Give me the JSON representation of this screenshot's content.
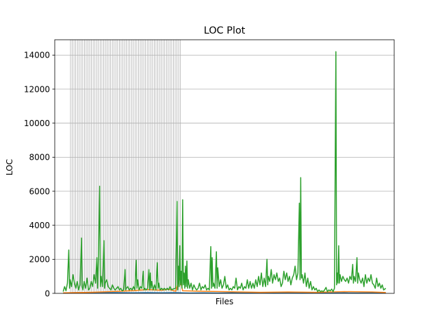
{
  "chart_data": {
    "type": "line",
    "title": "LOC Plot",
    "xlabel": "Files",
    "ylabel": "LOC",
    "ylim": [
      0,
      14900
    ],
    "y_ticks": [
      0,
      2000,
      4000,
      6000,
      8000,
      10000,
      12000,
      14000
    ],
    "y_tick_labels": [
      "0",
      "2000",
      "4000",
      "6000",
      "8000",
      "10000",
      "12000",
      "14000"
    ],
    "x_tick_labels": [],
    "grid": "horizontal lines at y ticks; vertical lines at each file index in the left part",
    "n_files": 460,
    "series": [
      {
        "color": "#1f77b4",
        "values": [
          [
            0,
            20
          ],
          [
            20,
            40
          ],
          [
            40,
            30
          ],
          [
            60,
            50
          ],
          [
            80,
            40
          ],
          [
            100,
            30
          ],
          [
            120,
            40
          ],
          [
            140,
            30
          ],
          [
            160,
            40
          ],
          [
            180,
            20
          ],
          [
            200,
            30
          ],
          [
            220,
            20
          ],
          [
            240,
            30
          ],
          [
            260,
            20
          ],
          [
            280,
            30
          ],
          [
            300,
            20
          ],
          [
            320,
            30
          ],
          [
            340,
            20
          ],
          [
            360,
            30
          ],
          [
            380,
            20
          ],
          [
            400,
            30
          ],
          [
            420,
            20
          ],
          [
            440,
            30
          ],
          [
            459,
            20
          ]
        ]
      },
      {
        "color": "#ff7f0e",
        "values": [
          [
            0,
            30
          ],
          [
            40,
            60
          ],
          [
            80,
            120
          ],
          [
            100,
            160
          ],
          [
            120,
            220
          ],
          [
            140,
            180
          ],
          [
            150,
            240
          ],
          [
            160,
            120
          ],
          [
            166,
            900
          ],
          [
            170,
            150
          ],
          [
            200,
            120
          ],
          [
            240,
            90
          ],
          [
            280,
            60
          ],
          [
            320,
            80
          ],
          [
            360,
            60
          ],
          [
            400,
            100
          ],
          [
            440,
            80
          ],
          [
            459,
            50
          ]
        ]
      },
      {
        "color": "#2ca02c",
        "values": [
          [
            0,
            100
          ],
          [
            2,
            400
          ],
          [
            4,
            150
          ],
          [
            6,
            600
          ],
          [
            8,
            2550
          ],
          [
            9,
            300
          ],
          [
            10,
            800
          ],
          [
            12,
            400
          ],
          [
            14,
            1100
          ],
          [
            16,
            600
          ],
          [
            18,
            300
          ],
          [
            20,
            700
          ],
          [
            22,
            200
          ],
          [
            24,
            500
          ],
          [
            26,
            3250
          ],
          [
            27,
            400
          ],
          [
            28,
            200
          ],
          [
            30,
            700
          ],
          [
            32,
            300
          ],
          [
            34,
            900
          ],
          [
            36,
            200
          ],
          [
            38,
            300
          ],
          [
            40,
            700
          ],
          [
            42,
            400
          ],
          [
            44,
            1100
          ],
          [
            46,
            600
          ],
          [
            48,
            2100
          ],
          [
            49,
            300
          ],
          [
            50,
            1800
          ],
          [
            52,
            6300
          ],
          [
            53,
            400
          ],
          [
            54,
            1000
          ],
          [
            56,
            400
          ],
          [
            58,
            3100
          ],
          [
            59,
            300
          ],
          [
            60,
            600
          ],
          [
            62,
            800
          ],
          [
            64,
            400
          ],
          [
            66,
            300
          ],
          [
            68,
            200
          ],
          [
            70,
            500
          ],
          [
            72,
            300
          ],
          [
            74,
            200
          ],
          [
            76,
            300
          ],
          [
            78,
            400
          ],
          [
            80,
            200
          ],
          [
            82,
            300
          ],
          [
            84,
            150
          ],
          [
            86,
            200
          ],
          [
            88,
            1400
          ],
          [
            89,
            200
          ],
          [
            90,
            300
          ],
          [
            92,
            400
          ],
          [
            94,
            200
          ],
          [
            96,
            300
          ],
          [
            98,
            200
          ],
          [
            100,
            400
          ],
          [
            102,
            200
          ],
          [
            104,
            1950
          ],
          [
            105,
            300
          ],
          [
            106,
            800
          ],
          [
            108,
            200
          ],
          [
            110,
            400
          ],
          [
            112,
            300
          ],
          [
            114,
            1300
          ],
          [
            115,
            200
          ],
          [
            116,
            300
          ],
          [
            118,
            200
          ],
          [
            120,
            300
          ],
          [
            122,
            1400
          ],
          [
            123,
            200
          ],
          [
            124,
            1200
          ],
          [
            125,
            300
          ],
          [
            126,
            700
          ],
          [
            128,
            200
          ],
          [
            130,
            500
          ],
          [
            132,
            200
          ],
          [
            134,
            1800
          ],
          [
            135,
            300
          ],
          [
            136,
            600
          ],
          [
            138,
            200
          ],
          [
            140,
            300
          ],
          [
            142,
            200
          ],
          [
            144,
            300
          ],
          [
            146,
            200
          ],
          [
            148,
            300
          ],
          [
            150,
            200
          ],
          [
            152,
            400
          ],
          [
            154,
            200
          ],
          [
            156,
            250
          ],
          [
            160,
            300
          ],
          [
            162,
            5400
          ],
          [
            163,
            200
          ],
          [
            164,
            1600
          ],
          [
            165,
            400
          ],
          [
            166,
            2800
          ],
          [
            167,
            500
          ],
          [
            168,
            1300
          ],
          [
            169,
            300
          ],
          [
            170,
            5500
          ],
          [
            171,
            500
          ],
          [
            172,
            1200
          ],
          [
            173,
            300
          ],
          [
            174,
            1600
          ],
          [
            175,
            400
          ],
          [
            176,
            1900
          ],
          [
            177,
            300
          ],
          [
            178,
            800
          ],
          [
            180,
            300
          ],
          [
            182,
            600
          ],
          [
            184,
            200
          ],
          [
            186,
            500
          ],
          [
            188,
            300
          ],
          [
            190,
            200
          ],
          [
            192,
            300
          ],
          [
            194,
            600
          ],
          [
            196,
            200
          ],
          [
            198,
            400
          ],
          [
            200,
            300
          ],
          [
            202,
            500
          ],
          [
            204,
            200
          ],
          [
            206,
            300
          ],
          [
            208,
            200
          ],
          [
            210,
            2750
          ],
          [
            211,
            300
          ],
          [
            212,
            2100
          ],
          [
            213,
            400
          ],
          [
            214,
            600
          ],
          [
            216,
            300
          ],
          [
            218,
            2450
          ],
          [
            219,
            300
          ],
          [
            220,
            1500
          ],
          [
            222,
            400
          ],
          [
            224,
            800
          ],
          [
            226,
            300
          ],
          [
            228,
            500
          ],
          [
            230,
            1000
          ],
          [
            232,
            300
          ],
          [
            234,
            500
          ],
          [
            236,
            200
          ],
          [
            238,
            300
          ],
          [
            240,
            200
          ],
          [
            242,
            400
          ],
          [
            244,
            300
          ],
          [
            246,
            900
          ],
          [
            248,
            200
          ],
          [
            250,
            400
          ],
          [
            252,
            300
          ],
          [
            254,
            600
          ],
          [
            256,
            200
          ],
          [
            258,
            400
          ],
          [
            260,
            300
          ],
          [
            262,
            800
          ],
          [
            264,
            300
          ],
          [
            266,
            700
          ],
          [
            268,
            300
          ],
          [
            270,
            600
          ],
          [
            272,
            300
          ],
          [
            274,
            800
          ],
          [
            276,
            400
          ],
          [
            278,
            1000
          ],
          [
            280,
            500
          ],
          [
            282,
            1200
          ],
          [
            284,
            400
          ],
          [
            286,
            900
          ],
          [
            288,
            400
          ],
          [
            290,
            2000
          ],
          [
            291,
            500
          ],
          [
            292,
            1000
          ],
          [
            294,
            700
          ],
          [
            296,
            1400
          ],
          [
            298,
            600
          ],
          [
            300,
            1100
          ],
          [
            302,
            800
          ],
          [
            304,
            1200
          ],
          [
            306,
            700
          ],
          [
            308,
            900
          ],
          [
            310,
            400
          ],
          [
            312,
            600
          ],
          [
            314,
            1300
          ],
          [
            316,
            800
          ],
          [
            318,
            1200
          ],
          [
            320,
            700
          ],
          [
            322,
            1000
          ],
          [
            324,
            500
          ],
          [
            326,
            900
          ],
          [
            328,
            1100
          ],
          [
            330,
            1600
          ],
          [
            332,
            800
          ],
          [
            334,
            1200
          ],
          [
            336,
            5300
          ],
          [
            337,
            800
          ],
          [
            338,
            6800
          ],
          [
            339,
            900
          ],
          [
            340,
            1100
          ],
          [
            342,
            600
          ],
          [
            344,
            1200
          ],
          [
            346,
            400
          ],
          [
            348,
            900
          ],
          [
            350,
            300
          ],
          [
            352,
            700
          ],
          [
            354,
            200
          ],
          [
            356,
            400
          ],
          [
            358,
            200
          ],
          [
            360,
            300
          ],
          [
            362,
            100
          ],
          [
            364,
            200
          ],
          [
            366,
            100
          ],
          [
            368,
            150
          ],
          [
            370,
            100
          ],
          [
            372,
            200
          ],
          [
            374,
            350
          ],
          [
            376,
            100
          ],
          [
            378,
            200
          ],
          [
            380,
            150
          ],
          [
            382,
            250
          ],
          [
            384,
            100
          ],
          [
            386,
            300
          ],
          [
            388,
            14200
          ],
          [
            389,
            500
          ],
          [
            390,
            1200
          ],
          [
            391,
            600
          ],
          [
            392,
            2800
          ],
          [
            393,
            600
          ],
          [
            394,
            1100
          ],
          [
            396,
            700
          ],
          [
            398,
            1000
          ],
          [
            400,
            800
          ],
          [
            402,
            700
          ],
          [
            404,
            900
          ],
          [
            406,
            600
          ],
          [
            408,
            1000
          ],
          [
            410,
            800
          ],
          [
            412,
            1700
          ],
          [
            413,
            600
          ],
          [
            414,
            1000
          ],
          [
            416,
            700
          ],
          [
            418,
            2100
          ],
          [
            419,
            600
          ],
          [
            420,
            1200
          ],
          [
            422,
            800
          ],
          [
            424,
            600
          ],
          [
            426,
            900
          ],
          [
            428,
            400
          ],
          [
            430,
            1100
          ],
          [
            432,
            600
          ],
          [
            434,
            900
          ],
          [
            436,
            700
          ],
          [
            438,
            1100
          ],
          [
            440,
            600
          ],
          [
            442,
            500
          ],
          [
            444,
            300
          ],
          [
            446,
            900
          ],
          [
            448,
            400
          ],
          [
            450,
            600
          ],
          [
            452,
            300
          ],
          [
            454,
            500
          ],
          [
            456,
            200
          ],
          [
            459,
            300
          ]
        ]
      }
    ]
  }
}
